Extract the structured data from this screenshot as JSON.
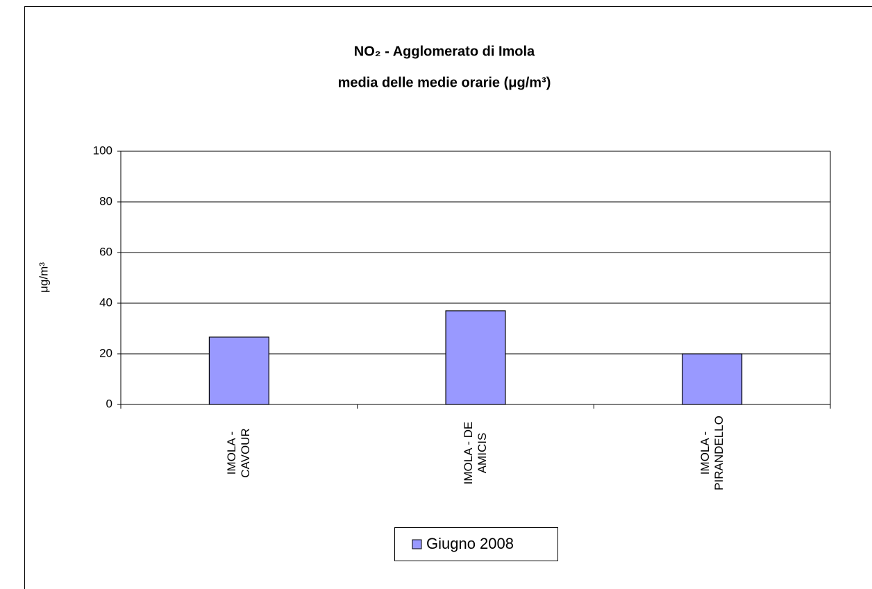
{
  "chart_data": {
    "type": "bar",
    "title": "NO₂ - Agglomerato di Imola",
    "subtitle": "media delle medie orarie (μg/m³)",
    "y_label": "μg/m³",
    "categories": [
      "IMOLA - CAVOUR",
      "IMOLA - DE AMICIS",
      "IMOLA - PIRANDELLO"
    ],
    "series": [
      {
        "name": "Giugno 2008",
        "color": "#9999ff",
        "values": [
          26.6,
          37,
          20
        ]
      }
    ],
    "ylim": [
      0,
      100
    ],
    "yticks": [
      0,
      20,
      40,
      60,
      80,
      100
    ],
    "grid": true,
    "legend": "bottom"
  }
}
